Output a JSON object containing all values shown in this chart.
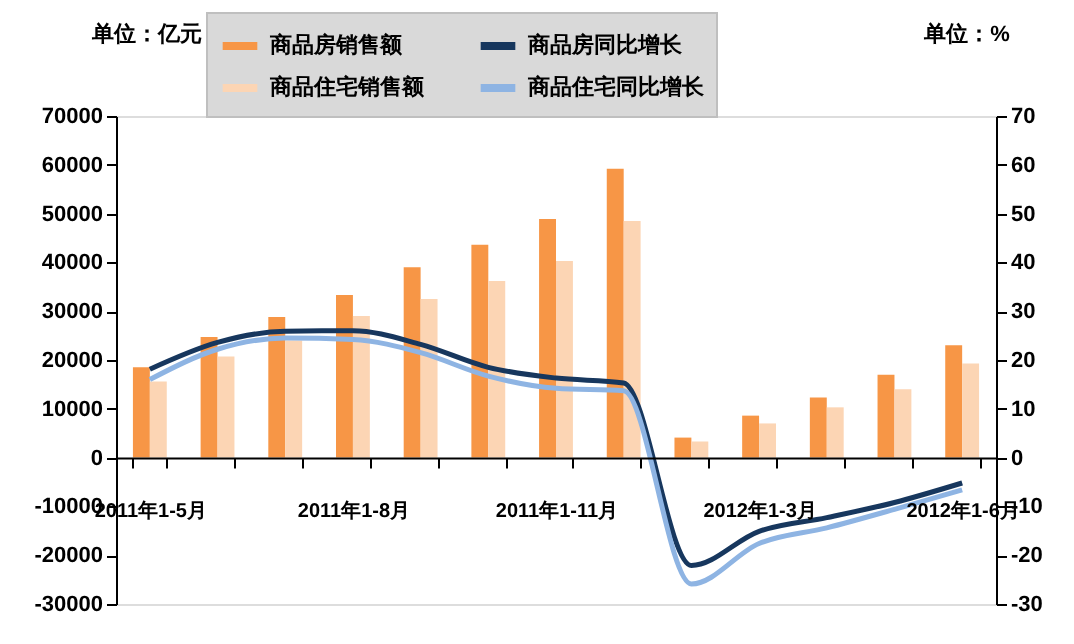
{
  "chart_data": {
    "type": "bar",
    "ylabel": "单位：亿元",
    "y2label": "单位：%",
    "categories": [
      "2011年1-5月",
      null,
      null,
      "2011年1-8月",
      null,
      null,
      "2011年1-11月",
      null,
      null,
      "2012年1-3月",
      null,
      null,
      "2012年1-6月"
    ],
    "series": [
      {
        "name": "商品房销售额",
        "color": "#f79646",
        "values": [
          18500,
          24700,
          28800,
          33300,
          39000,
          43600,
          48900,
          59200,
          4100,
          8600,
          12300,
          17000,
          23000
        ]
      },
      {
        "name": "商品住宅销售额",
        "color": "#fcd5b4",
        "values": [
          15600,
          20700,
          24000,
          29000,
          32500,
          36200,
          40300,
          48500,
          3300,
          7000,
          10300,
          14000,
          19300
        ]
      },
      {
        "name": "商品房同比增长",
        "color": "#17375e",
        "type": "line",
        "axis": "y2",
        "values": [
          18.1,
          23.6,
          25.9,
          26.0,
          23.2,
          18.5,
          16.3,
          15.3,
          -22.1,
          -15.1,
          -12.3,
          -9.2,
          -5.2
        ]
      },
      {
        "name": "商品住宅同比增长",
        "color": "#8eb4e3",
        "type": "line",
        "axis": "y2",
        "values": [
          16.0,
          22.2,
          24.5,
          24.2,
          21.5,
          16.7,
          14.2,
          13.7,
          -25.9,
          -17.6,
          -14.4,
          -10.6,
          -6.6
        ]
      }
    ],
    "ylim": [
      -30000,
      70000
    ],
    "yticks": [
      -30000,
      -20000,
      -10000,
      0,
      10000,
      20000,
      30000,
      40000,
      50000,
      60000,
      70000
    ],
    "y2lim": [
      -30,
      70
    ],
    "y2ticks": [
      -30,
      -20,
      -10,
      0,
      10,
      20,
      30,
      40,
      50,
      60,
      70
    ],
    "grid": false,
    "legend": "top",
    "line_style": "solid",
    "marker": "none"
  }
}
